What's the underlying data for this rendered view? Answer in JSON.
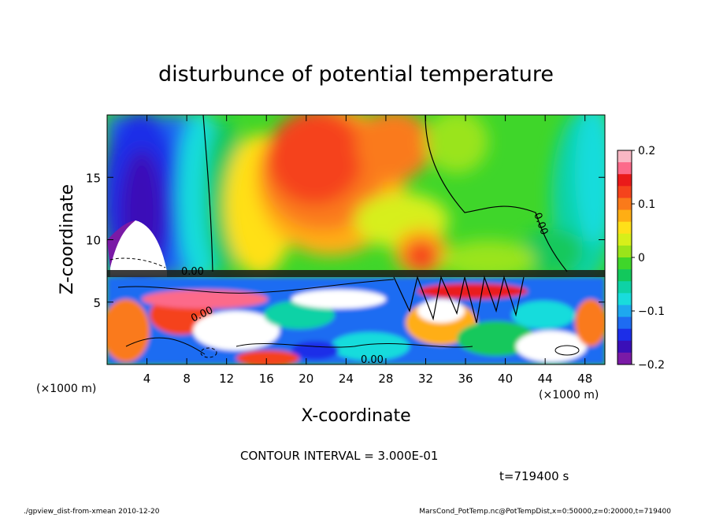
{
  "chart_data": {
    "type": "heatmap",
    "title": "disturbunce of potential temperature",
    "xlabel": "X-coordinate",
    "ylabel": "Z-coordinate",
    "x_unit": "(×1000 m)",
    "y_unit": "(×1000 m)",
    "xlim": [
      0,
      50
    ],
    "ylim": [
      0,
      20
    ],
    "x_ticks": [
      "4",
      "8",
      "12",
      "16",
      "20",
      "24",
      "28",
      "32",
      "36",
      "40",
      "44",
      "48"
    ],
    "y_ticks": [
      "5",
      "10",
      "15"
    ],
    "colorbar": {
      "range": [
        -0.2,
        0.2
      ],
      "labels": [
        "0.2",
        "0.1",
        "0",
        "−0.1",
        "−0.2"
      ],
      "colors": [
        "#f9b7c4",
        "#fc6a8a",
        "#ea1a1a",
        "#f5431c",
        "#fa7a1a",
        "#ffae14",
        "#ffe019",
        "#d7ef1a",
        "#9ae41a",
        "#3fd62a",
        "#12c85c",
        "#0ed2a6",
        "#19dcdc",
        "#1ea8ef",
        "#1e6cf2",
        "#1c2ee8",
        "#3a0fb8",
        "#7a1aa6"
      ]
    },
    "contour_interval_text": "CONTOUR INTERVAL = 3.000E-01",
    "contour_labels": [
      "0.00",
      "0.00",
      "0.00",
      "0.00"
    ],
    "time_label": "t=719400 s"
  },
  "footer": {
    "left": "./gpview_dist-from-xmean  2010-12-20",
    "right": "MarsCond_PotTemp.nc@PotTempDist,x=0:50000,z=0:20000,t=719400"
  }
}
